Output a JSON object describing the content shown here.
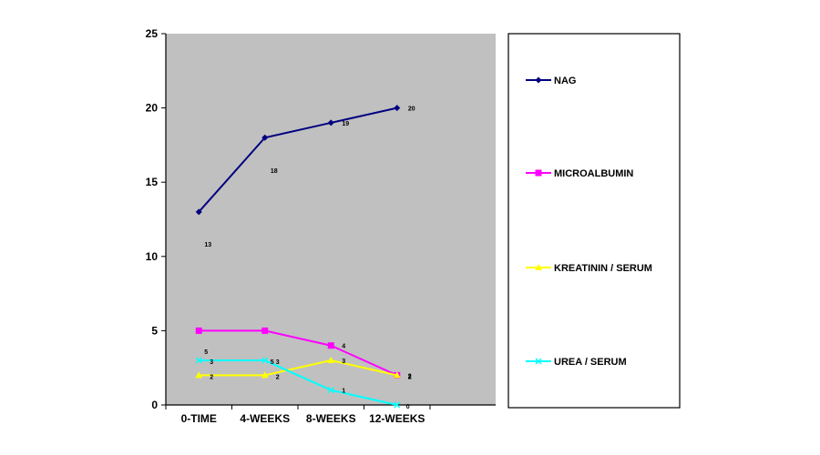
{
  "chart_data": {
    "type": "line",
    "title": "",
    "xlabel": "",
    "ylabel": "",
    "categories": [
      "0-TIME",
      "4-WEEKS",
      "8-WEEKS",
      "12-WEEKS"
    ],
    "ylim": [
      0,
      25
    ],
    "yticks": [
      0,
      5,
      10,
      15,
      20,
      25
    ],
    "grid": false,
    "legend_position": "right",
    "plot_background": "#c0c0c0",
    "series": [
      {
        "name": "NAG",
        "values": [
          13,
          18,
          19,
          20
        ],
        "color": "#000080",
        "marker": "diamond",
        "labels": [
          "13",
          "18",
          "19",
          "20"
        ]
      },
      {
        "name": "MICROALBUMIN",
        "values": [
          5,
          5,
          4,
          2
        ],
        "color": "#ff00ff",
        "marker": "square",
        "labels": [
          "",
          "",
          "4",
          "2"
        ]
      },
      {
        "name": "KREATININ / SERUM",
        "values": [
          2,
          2,
          3,
          2
        ],
        "color": "#ffff00",
        "marker": "triangle",
        "labels": [
          "2",
          "2",
          "3",
          "2"
        ]
      },
      {
        "name": "UREA / SERUM",
        "values": [
          3,
          3,
          1,
          0
        ],
        "color": "#00ffff",
        "marker": "x",
        "labels": [
          "3",
          "3",
          "1",
          "0"
        ]
      }
    ],
    "extra_labels": [
      "5",
      "5"
    ]
  }
}
